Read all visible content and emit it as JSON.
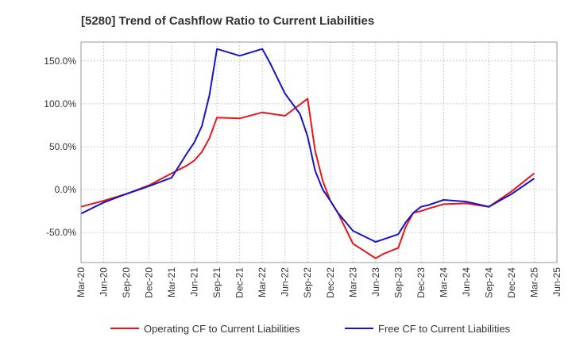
{
  "chart_data": {
    "type": "line",
    "title": "[5280]  Trend of Cashflow Ratio to Current Liabilities",
    "xlabel": "",
    "ylabel": "",
    "ylim": [
      -85,
      172
    ],
    "yticks": [
      150,
      100,
      50,
      0,
      -50
    ],
    "ytick_labels": [
      "150.0%",
      "100.0%",
      "50.0%",
      "0.0%",
      "-50.0%"
    ],
    "x_range": [
      "2020-03",
      "2025-06"
    ],
    "xtick_labels": [
      "Mar-20",
      "Jun-20",
      "Sep-20",
      "Dec-20",
      "Mar-21",
      "Jun-21",
      "Sep-21",
      "Dec-21",
      "Mar-22",
      "Jun-22",
      "Sep-22",
      "Dec-22",
      "Mar-23",
      "Jun-23",
      "Sep-23",
      "Dec-23",
      "Mar-24",
      "Jun-24",
      "Sep-24",
      "Dec-24",
      "Mar-25",
      "Jun-25"
    ],
    "grid": true,
    "legend_position": "bottom",
    "series": [
      {
        "name": "Operating CF to Current Liabilities",
        "color": "#e8141a",
        "points": [
          [
            "2020-03",
            -20
          ],
          [
            "2020-06",
            -13
          ],
          [
            "2020-09",
            -5
          ],
          [
            "2020-12",
            5
          ],
          [
            "2021-03",
            19
          ],
          [
            "2021-05",
            28
          ],
          [
            "2021-06",
            34
          ],
          [
            "2021-07",
            44
          ],
          [
            "2021-08",
            60
          ],
          [
            "2021-09",
            84
          ],
          [
            "2021-12",
            83
          ],
          [
            "2022-03",
            90
          ],
          [
            "2022-06",
            86
          ],
          [
            "2022-09",
            106
          ],
          [
            "2022-10",
            45
          ],
          [
            "2022-11",
            10
          ],
          [
            "2022-12",
            -13
          ],
          [
            "2023-01",
            -27
          ],
          [
            "2023-02",
            -45
          ],
          [
            "2023-03",
            -63
          ],
          [
            "2023-06",
            -80
          ],
          [
            "2023-07",
            -75
          ],
          [
            "2023-09",
            -68
          ],
          [
            "2023-10",
            -43
          ],
          [
            "2023-11",
            -27
          ],
          [
            "2023-12",
            -25
          ],
          [
            "2024-01",
            -22
          ],
          [
            "2024-03",
            -17
          ],
          [
            "2024-06",
            -16
          ],
          [
            "2024-09",
            -20
          ],
          [
            "2024-12",
            -2
          ],
          [
            "2025-03",
            19
          ]
        ]
      },
      {
        "name": "Free CF to Current Liabilities",
        "color": "#1414c8",
        "points": [
          [
            "2020-03",
            -28
          ],
          [
            "2020-06",
            -15
          ],
          [
            "2020-09",
            -5
          ],
          [
            "2020-12",
            4
          ],
          [
            "2021-03",
            14
          ],
          [
            "2021-04",
            28
          ],
          [
            "2021-05",
            42
          ],
          [
            "2021-06",
            55
          ],
          [
            "2021-07",
            74
          ],
          [
            "2021-08",
            110
          ],
          [
            "2021-09",
            164
          ],
          [
            "2021-12",
            156
          ],
          [
            "2022-03",
            164
          ],
          [
            "2022-04",
            148
          ],
          [
            "2022-06",
            112
          ],
          [
            "2022-08",
            88
          ],
          [
            "2022-09",
            62
          ],
          [
            "2022-10",
            22
          ],
          [
            "2022-11",
            0
          ],
          [
            "2022-12",
            -13
          ],
          [
            "2023-01",
            -27
          ],
          [
            "2023-03",
            -48
          ],
          [
            "2023-06",
            -61
          ],
          [
            "2023-07",
            -58
          ],
          [
            "2023-09",
            -52
          ],
          [
            "2023-10",
            -38
          ],
          [
            "2023-11",
            -27
          ],
          [
            "2023-12",
            -20
          ],
          [
            "2024-01",
            -18
          ],
          [
            "2024-03",
            -12
          ],
          [
            "2024-06",
            -14
          ],
          [
            "2024-09",
            -20
          ],
          [
            "2024-12",
            -5
          ],
          [
            "2025-03",
            13
          ]
        ]
      }
    ]
  }
}
